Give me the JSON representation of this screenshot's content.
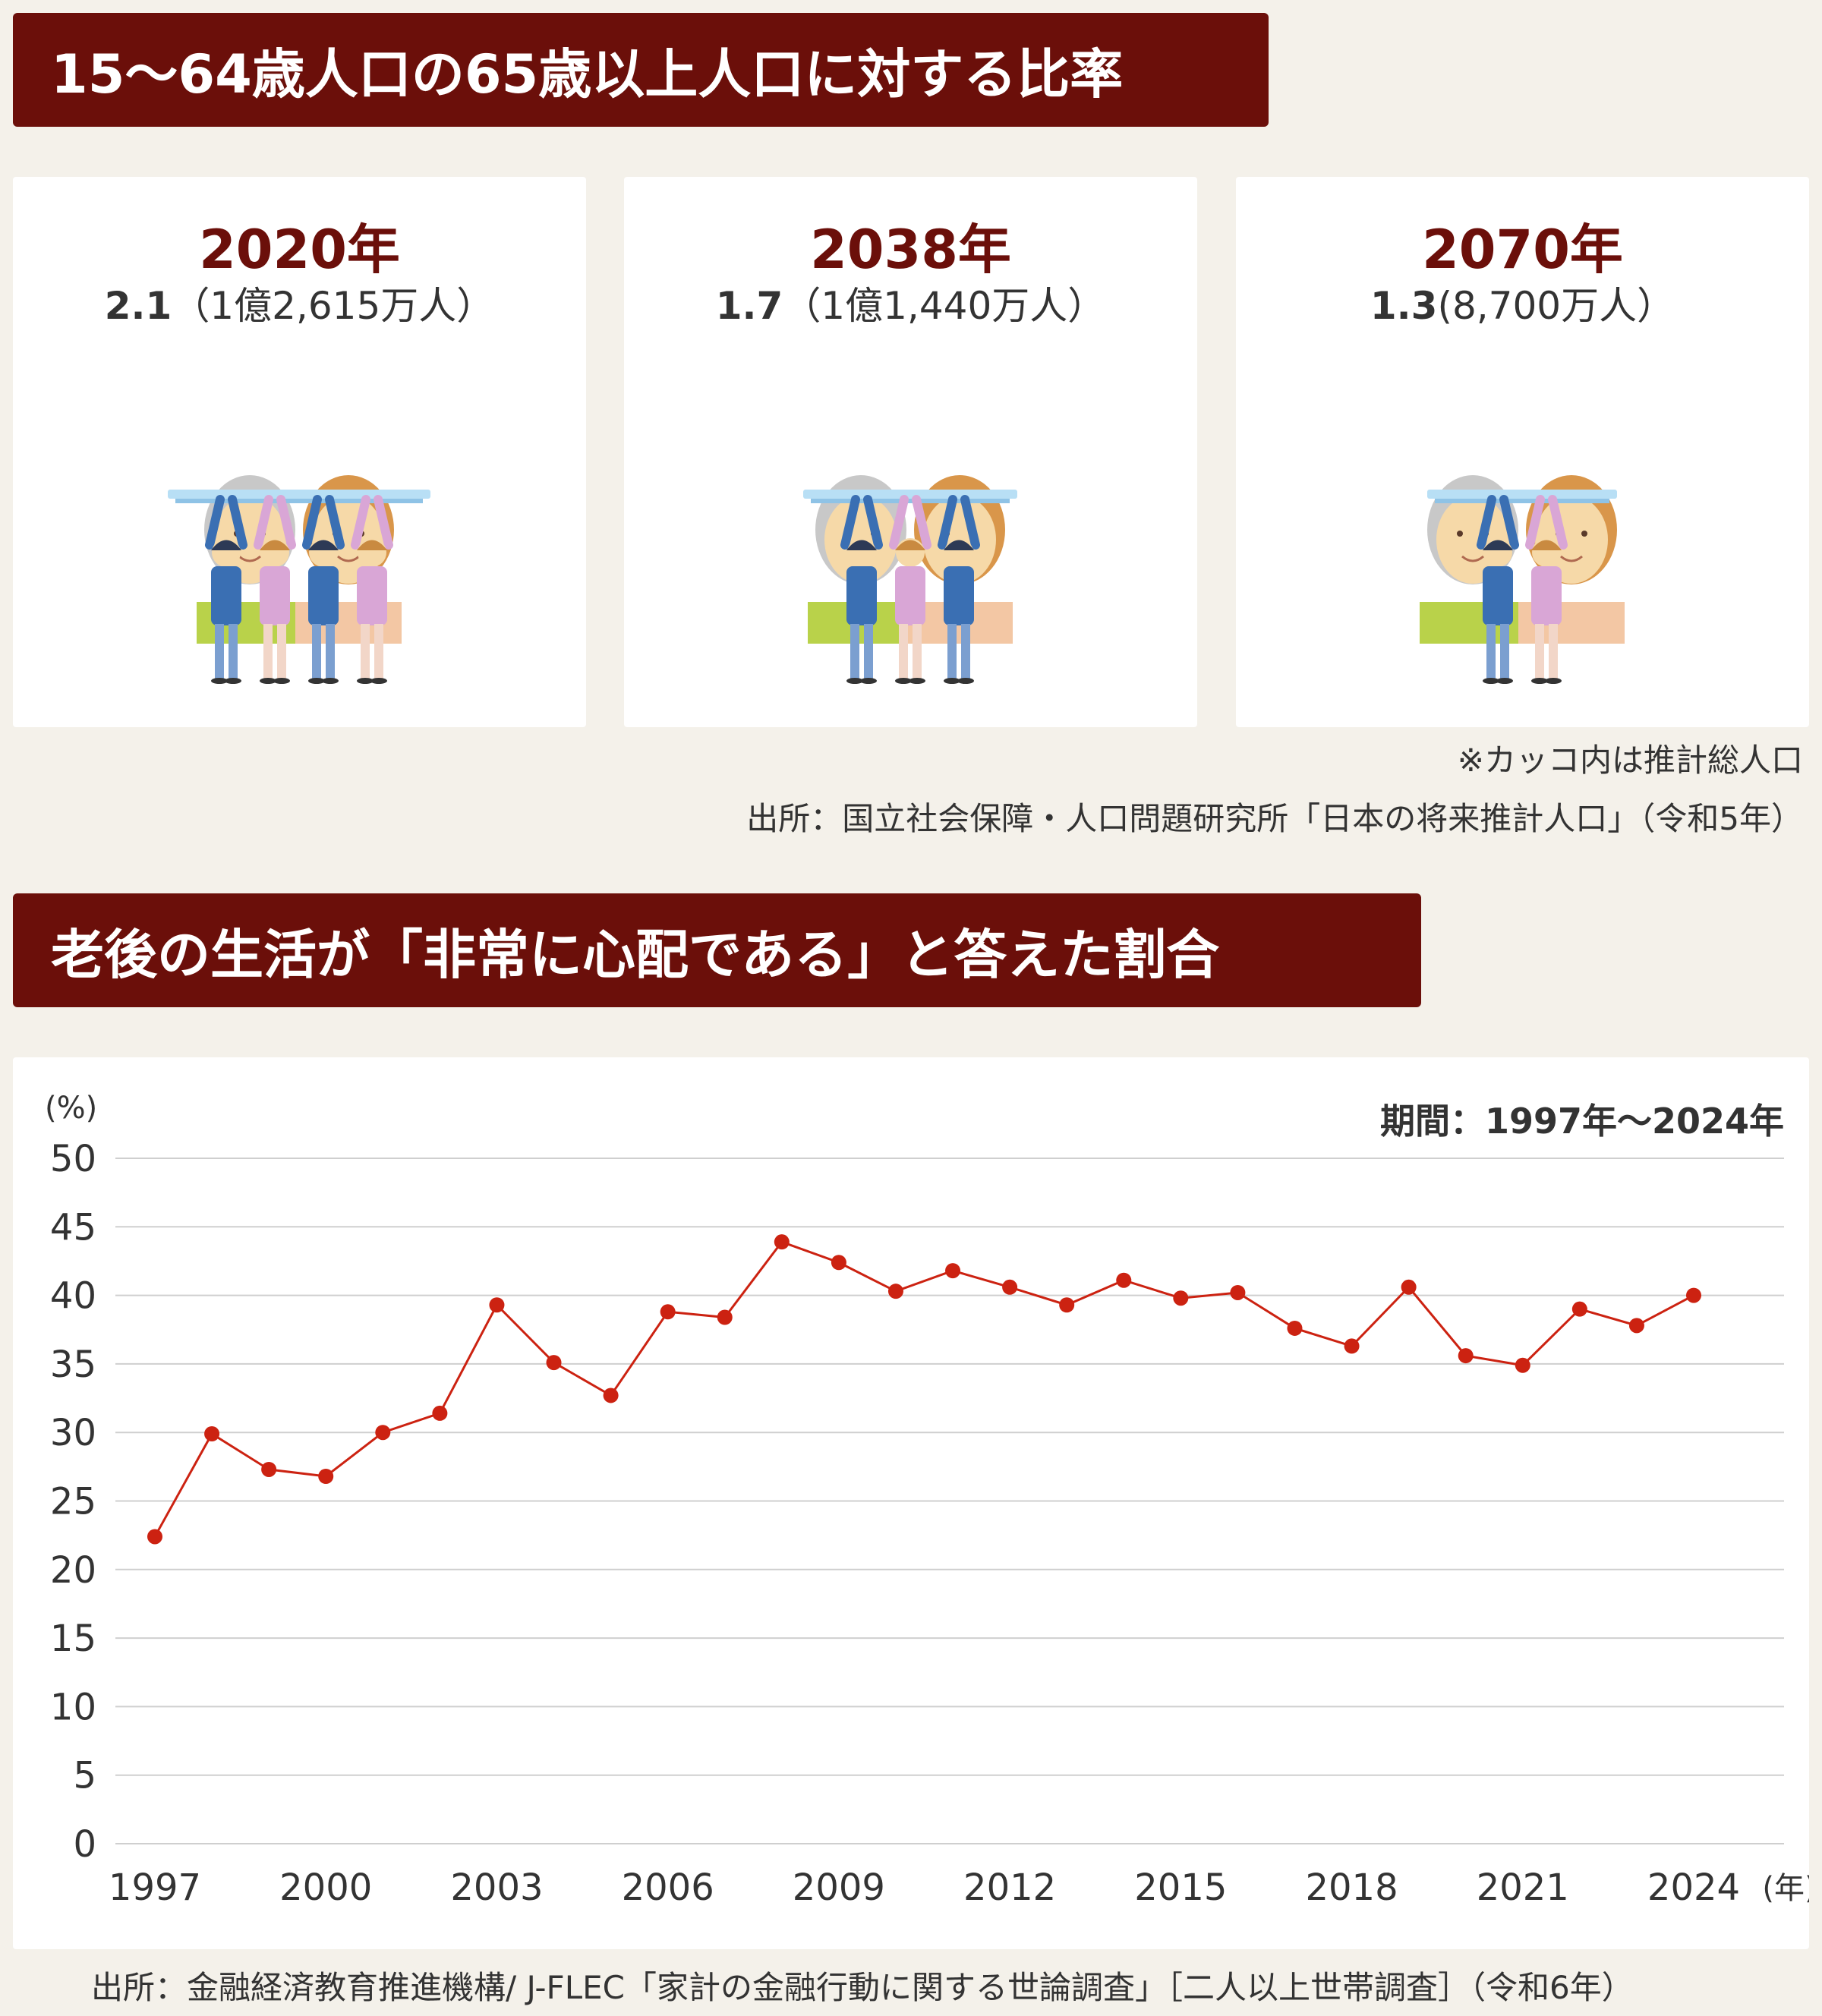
{
  "section1": {
    "title": "15〜64歳人口の65歳以上人口に対する比率",
    "cards": [
      {
        "year": "2020年",
        "ratio": "2.1",
        "population": "（1億2,615万人）",
        "young_workers": 4
      },
      {
        "year": "2038年",
        "ratio": "1.7",
        "population": "（1億1,440万人）",
        "young_workers": 3
      },
      {
        "year": "2070年",
        "ratio": "1.3",
        "population": "(8,700万人）",
        "young_workers": 2
      }
    ],
    "note": "※カッコ内は推計総人口",
    "source": "出所：国立社会保障・人口問題研究所「日本の将来推計人口」（令和5年）"
  },
  "section2": {
    "title": "老後の生活が「非常に心配である」と答えた割合",
    "source": "出所：金融経済教育推進機構/ J-FLEC「家計の金融行動に関する世論調査」［二人以上世帯調査］（令和6年）"
  },
  "colors": {
    "banner": "#6b0f0a",
    "line": "#cc2211",
    "grid": "#cfcfcf"
  },
  "chart_data": {
    "type": "line",
    "y_unit": "(%)",
    "x_unit": "(年)",
    "period_label": "期間：1997年〜2024年",
    "ylim": [
      0,
      50
    ],
    "y_ticks": [
      0,
      5,
      10,
      15,
      20,
      25,
      30,
      35,
      40,
      45,
      50
    ],
    "x_tick_labels": [
      "1997",
      "2000",
      "2003",
      "2006",
      "2009",
      "2012",
      "2015",
      "2018",
      "2021",
      "2024"
    ],
    "x": [
      1997,
      1998,
      1999,
      2000,
      2001,
      2002,
      2003,
      2004,
      2005,
      2006,
      2007,
      2008,
      2009,
      2010,
      2011,
      2012,
      2013,
      2014,
      2015,
      2016,
      2017,
      2018,
      2019,
      2020,
      2021,
      2022,
      2023,
      2024
    ],
    "values": [
      22.4,
      29.9,
      27.3,
      26.8,
      30.0,
      31.4,
      39.3,
      35.1,
      32.7,
      38.8,
      38.4,
      43.9,
      42.4,
      40.3,
      41.8,
      40.6,
      39.3,
      41.1,
      39.8,
      40.2,
      37.6,
      36.3,
      40.6,
      35.6,
      34.9,
      39.0,
      37.8,
      40.0
    ]
  }
}
